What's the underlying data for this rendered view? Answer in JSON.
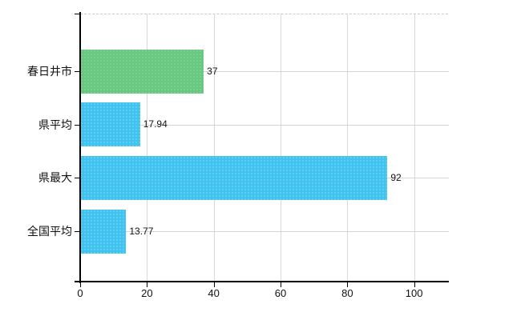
{
  "chart_data": {
    "type": "bar",
    "orientation": "horizontal",
    "title": "",
    "xlabel": "",
    "ylabel": "",
    "categories": [
      "春日井市",
      "県平均",
      "県最大",
      "全国平均"
    ],
    "values": [
      37,
      17.94,
      92,
      13.77
    ],
    "value_labels": [
      "37",
      "17.94",
      "92",
      "13.77"
    ],
    "bar_colors": [
      "#68c87f",
      "#41c3f0",
      "#41c3f0",
      "#41c3f0"
    ],
    "x_ticks": [
      0,
      20,
      40,
      60,
      80,
      100
    ],
    "x_tick_labels": [
      "0",
      "20",
      "40",
      "60",
      "80",
      "100"
    ],
    "xlim": [
      0,
      110.4
    ],
    "grid": true,
    "legend": null,
    "colors": {
      "bar_highlight": "#68c87f",
      "bar_default": "#41c3f0",
      "grid_line": "#d4d8d0",
      "top_border": "#c8ccc4",
      "axis_line": "#000000",
      "text": "#111111",
      "background": "#ffffff"
    }
  }
}
